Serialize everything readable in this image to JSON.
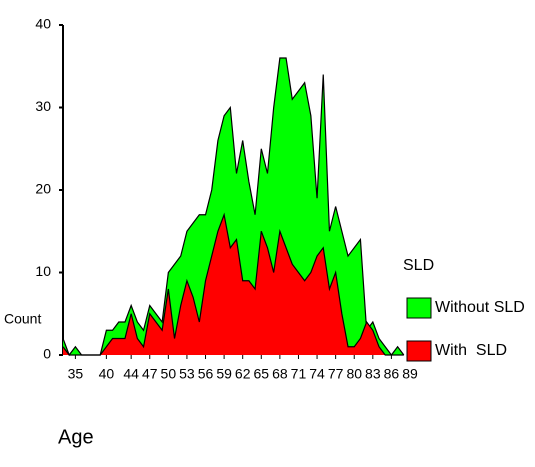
{
  "chart_data": {
    "type": "area",
    "x_label": "Age",
    "y_label": "Count",
    "legend_title": "SLD",
    "x": [
      33,
      34,
      35,
      36,
      37,
      38,
      39,
      40,
      41,
      42,
      43,
      44,
      45,
      46,
      47,
      48,
      49,
      50,
      51,
      52,
      53,
      54,
      55,
      56,
      57,
      58,
      59,
      60,
      61,
      62,
      63,
      64,
      65,
      66,
      67,
      68,
      69,
      70,
      71,
      72,
      73,
      74,
      75,
      76,
      77,
      78,
      79,
      80,
      81,
      82,
      83,
      84,
      85,
      86,
      87,
      88
    ],
    "series": [
      {
        "name": "Without SLD",
        "color": "#00ff00",
        "values": [
          2,
          0,
          1,
          0,
          0,
          0,
          0,
          3,
          3,
          4,
          4,
          6,
          4,
          3,
          6,
          5,
          4,
          10,
          11,
          12,
          15,
          16,
          17,
          17,
          20,
          26,
          29,
          30,
          22,
          26,
          21,
          17,
          25,
          22,
          30,
          36,
          36,
          31,
          32,
          33,
          29,
          19,
          34,
          15,
          18,
          15,
          12,
          13,
          14,
          3,
          4,
          2,
          1,
          0,
          1,
          0
        ]
      },
      {
        "name": "With  SLD",
        "color": "#ff0000",
        "values": [
          1,
          0,
          0,
          0,
          0,
          0,
          0,
          1,
          2,
          2,
          2,
          5,
          2,
          1,
          5,
          4,
          3,
          8,
          2,
          6,
          9,
          7,
          4,
          9,
          12,
          15,
          17,
          13,
          14,
          9,
          9,
          8,
          15,
          13,
          10,
          15,
          13,
          11,
          10,
          9,
          10,
          12,
          13,
          8,
          10,
          5,
          1,
          1,
          2,
          4,
          3,
          1,
          0,
          0,
          0,
          0
        ]
      }
    ],
    "xlim": [
      33,
      89
    ],
    "xticks": [
      35,
      40,
      44,
      47,
      50,
      53,
      56,
      59,
      62,
      65,
      68,
      71,
      74,
      77,
      80,
      83,
      86,
      89
    ],
    "ylim": [
      0,
      40
    ],
    "yticks": [
      0,
      10,
      20,
      30,
      40
    ]
  }
}
